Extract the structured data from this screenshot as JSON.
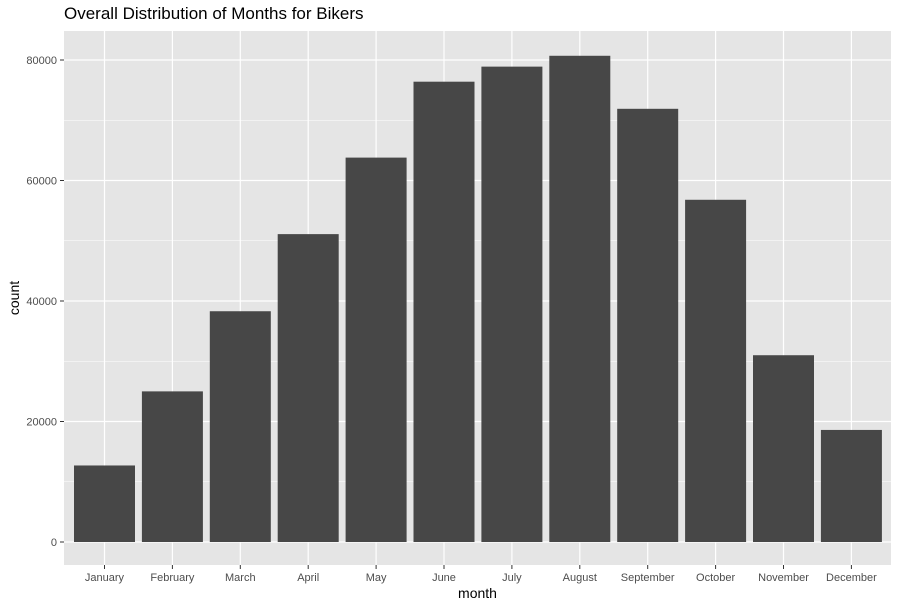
{
  "chart_data": {
    "type": "bar",
    "title": "Overall Distribution of Months for Bikers",
    "xlabel": "month",
    "ylabel": "count",
    "categories": [
      "January",
      "February",
      "March",
      "April",
      "May",
      "June",
      "July",
      "August",
      "September",
      "October",
      "November",
      "December"
    ],
    "values": [
      12700,
      25000,
      38300,
      51100,
      63800,
      76400,
      78900,
      80700,
      71900,
      56800,
      31000,
      18600
    ],
    "ylim": [
      0,
      83000
    ],
    "yticks": [
      0,
      20000,
      40000,
      60000,
      80000
    ],
    "ytick_labels": [
      "0",
      "20000",
      "40000",
      "60000",
      "80000"
    ],
    "grid": true,
    "colors": {
      "bar": "#474747",
      "panel": "#e5e5e5",
      "grid": "#ffffff"
    }
  }
}
